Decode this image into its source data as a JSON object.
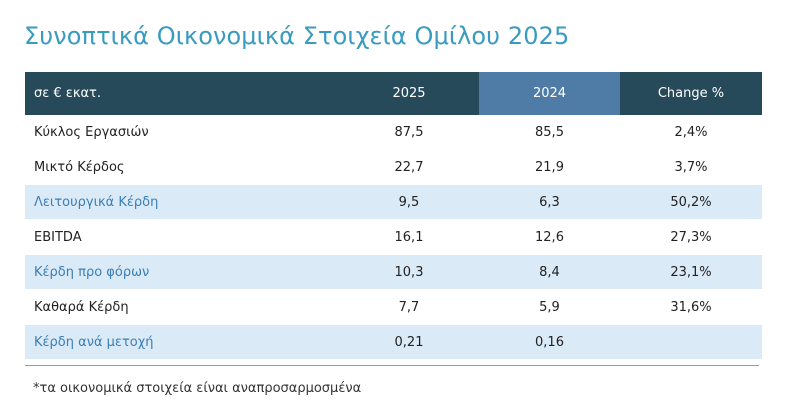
{
  "title": "Συνοπτικά Οικονομικά Στοιχεία Ομίλου 2025",
  "colors": {
    "title": "#3a9bc0",
    "header_bg": "#274a5a",
    "header_highlight_bg": "#4f7ca6",
    "row_highlight_bg": "#dbeaf7",
    "row_highlight_text": "#3b7fb5"
  },
  "table": {
    "headers": [
      "σε € εκατ.",
      "2025",
      "2024",
      "Change %"
    ],
    "rows": [
      {
        "label": "Κύκλος Εργασιών",
        "v2025": "87,5",
        "v2024": "85,5",
        "change": "2,4%",
        "highlight": false
      },
      {
        "label": "Μικτό Κέρδος",
        "v2025": "22,7",
        "v2024": "21,9",
        "change": "3,7%",
        "highlight": false
      },
      {
        "label": "Λειτουργικά Κέρδη",
        "v2025": "9,5",
        "v2024": "6,3",
        "change": "50,2%",
        "highlight": true
      },
      {
        "label": "EBITDA",
        "v2025": "16,1",
        "v2024": "12,6",
        "change": "27,3%",
        "highlight": false
      },
      {
        "label": "Κέρδη προ φόρων",
        "v2025": "10,3",
        "v2024": "8,4",
        "change": "23,1%",
        "highlight": true
      },
      {
        "label": "Καθαρά Κέρδη",
        "v2025": "7,7",
        "v2024": "5,9",
        "change": "31,6%",
        "highlight": false
      },
      {
        "label": "Κέρδη ανά μετοχή",
        "v2025": "0,21",
        "v2024": "0,16",
        "change": "",
        "highlight": true
      }
    ]
  },
  "footnote": "*τα οικονομικά στοιχεία είναι αναπροσαρμοσμένα"
}
